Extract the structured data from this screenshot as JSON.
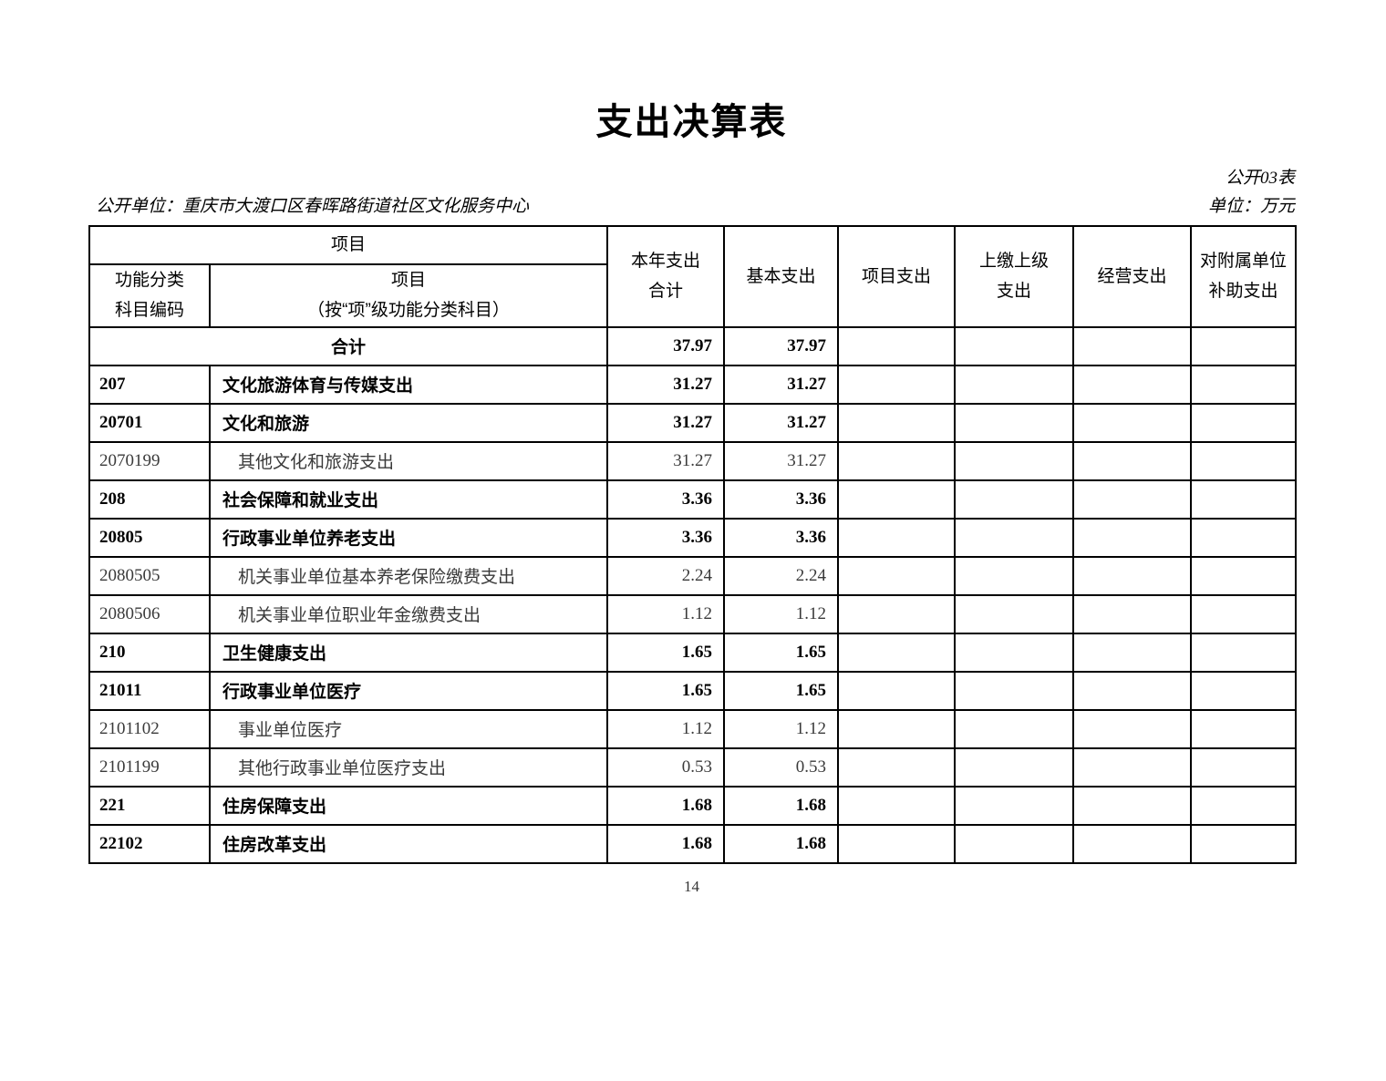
{
  "page": {
    "title": "支出决算表",
    "table_code": "公开03表",
    "org_label": "公开单位：重庆市大渡口区春晖路街道社区文化服务中心",
    "unit_label": "单位：万元",
    "page_number": "14"
  },
  "table": {
    "header": {
      "item_group": "项目",
      "code_label": "功能分类\n科目编码",
      "name_label": "项目\n（按“项”级功能分类科目）",
      "columns": [
        "本年支出\n合计",
        "基本支出",
        "项目支出",
        "上缴上级\n支出",
        "经营支出",
        "对附属单位\n补助支出"
      ]
    },
    "rows": [
      {
        "code": "",
        "name": "合计",
        "merged": true,
        "bold": true,
        "values": [
          "37.97",
          "37.97",
          "",
          "",
          "",
          ""
        ]
      },
      {
        "code": "207",
        "name": "文化旅游体育与传媒支出",
        "merged": false,
        "bold": true,
        "values": [
          "31.27",
          "31.27",
          "",
          "",
          "",
          ""
        ]
      },
      {
        "code": "20701",
        "name": "文化和旅游",
        "merged": false,
        "bold": true,
        "values": [
          "31.27",
          "31.27",
          "",
          "",
          "",
          ""
        ]
      },
      {
        "code": "2070199",
        "name": "其他文化和旅游支出",
        "merged": false,
        "bold": false,
        "values": [
          "31.27",
          "31.27",
          "",
          "",
          "",
          ""
        ]
      },
      {
        "code": "208",
        "name": "社会保障和就业支出",
        "merged": false,
        "bold": true,
        "values": [
          "3.36",
          "3.36",
          "",
          "",
          "",
          ""
        ]
      },
      {
        "code": "20805",
        "name": "行政事业单位养老支出",
        "merged": false,
        "bold": true,
        "values": [
          "3.36",
          "3.36",
          "",
          "",
          "",
          ""
        ]
      },
      {
        "code": "2080505",
        "name": "机关事业单位基本养老保险缴费支出",
        "merged": false,
        "bold": false,
        "values": [
          "2.24",
          "2.24",
          "",
          "",
          "",
          ""
        ]
      },
      {
        "code": "2080506",
        "name": "机关事业单位职业年金缴费支出",
        "merged": false,
        "bold": false,
        "values": [
          "1.12",
          "1.12",
          "",
          "",
          "",
          ""
        ]
      },
      {
        "code": "210",
        "name": "卫生健康支出",
        "merged": false,
        "bold": true,
        "values": [
          "1.65",
          "1.65",
          "",
          "",
          "",
          ""
        ]
      },
      {
        "code": "21011",
        "name": "行政事业单位医疗",
        "merged": false,
        "bold": true,
        "values": [
          "1.65",
          "1.65",
          "",
          "",
          "",
          ""
        ]
      },
      {
        "code": "2101102",
        "name": "事业单位医疗",
        "merged": false,
        "bold": false,
        "values": [
          "1.12",
          "1.12",
          "",
          "",
          "",
          ""
        ]
      },
      {
        "code": "2101199",
        "name": "其他行政事业单位医疗支出",
        "merged": false,
        "bold": false,
        "values": [
          "0.53",
          "0.53",
          "",
          "",
          "",
          ""
        ]
      },
      {
        "code": "221",
        "name": "住房保障支出",
        "merged": false,
        "bold": true,
        "values": [
          "1.68",
          "1.68",
          "",
          "",
          "",
          ""
        ]
      },
      {
        "code": "22102",
        "name": "住房改革支出",
        "merged": false,
        "bold": true,
        "values": [
          "1.68",
          "1.68",
          "",
          "",
          "",
          ""
        ]
      }
    ]
  }
}
